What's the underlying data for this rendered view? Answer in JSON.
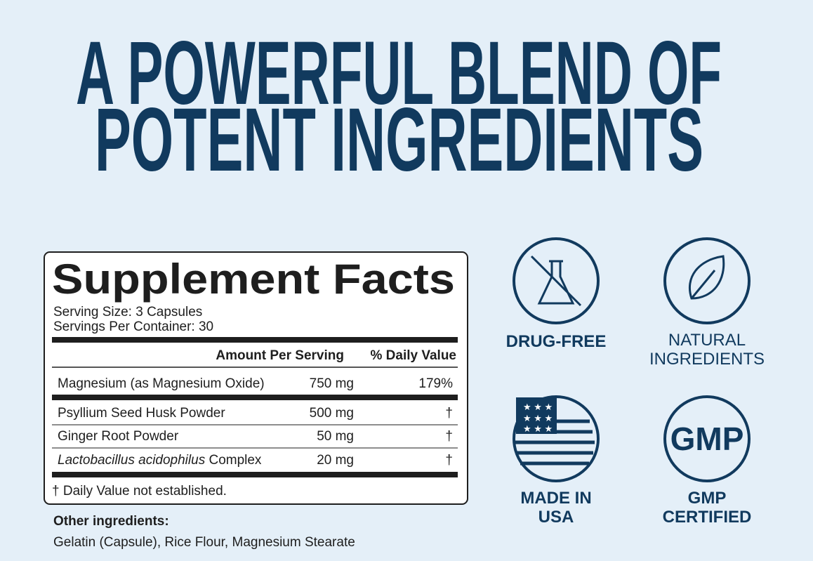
{
  "header": {
    "title_lines": [
      "A POWERFUL BLEND OF",
      "POTENT INGREDIENTS"
    ]
  },
  "facts": {
    "heading": "Supplement Facts",
    "serving_size": "Serving Size: 3 Capsules",
    "servings_per_container": "Servings Per Container: 30",
    "columns": [
      "Amount Per Serving",
      "% Daily Value"
    ],
    "rows": [
      {
        "name": "Magnesium (as Magnesium Oxide)",
        "amount": "750 mg",
        "dv": "179%"
      },
      {
        "name": "Psyllium Seed Husk Powder",
        "amount": "500 mg",
        "dv": "†"
      },
      {
        "name": "Ginger Root Powder",
        "amount": "50 mg",
        "dv": "†"
      },
      {
        "name_italic": "Lactobacillus acidophilus",
        "name": " Complex",
        "amount": "20 mg",
        "dv": "†"
      }
    ],
    "footnote": "† Daily Value not established."
  },
  "other_ingredients": {
    "label": "Other ingredients:",
    "text": "Gelatin (Capsule), Rice Flour, Magnesium Stearate"
  },
  "badges": [
    {
      "label": [
        "DRUG-FREE"
      ]
    },
    {
      "label": [
        "NATURAL",
        "INGREDIENTS"
      ]
    },
    {
      "label": [
        "MADE IN",
        "USA"
      ]
    },
    {
      "icon_text": "GMP",
      "label": [
        "GMP",
        "CERTIFIED"
      ]
    }
  ]
}
